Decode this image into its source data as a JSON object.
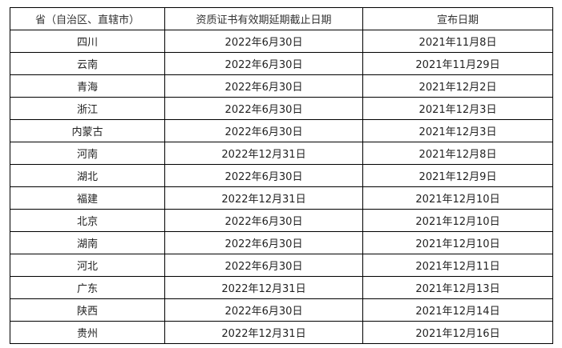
{
  "headers": [
    "省（自治区、直辖市）",
    "资质证书有效期延期截止日期",
    "宣布日期"
  ],
  "rows": [
    [
      "四川",
      "2022年6月30日",
      "2021年11月8日"
    ],
    [
      "云南",
      "2022年6月30日",
      "2021年11月29日"
    ],
    [
      "青海",
      "2022年6月30日",
      "2021年12月2日"
    ],
    [
      "浙江",
      "2022年6月30日",
      "2021年12月3日"
    ],
    [
      "内蒙古",
      "2022年6月30日",
      "2021年12月3日"
    ],
    [
      "河南",
      "2022年12月31日",
      "2021年12月8日"
    ],
    [
      "湖北",
      "2022年6月30日",
      "2021年12月9日"
    ],
    [
      "福建",
      "2022年12月31日",
      "2021年12月10日"
    ],
    [
      "北京",
      "2022年6月30日",
      "2021年12月10日"
    ],
    [
      "湖南",
      "2022年6月30日",
      "2021年12月10日"
    ],
    [
      "河北",
      "2022年6月30日",
      "2021年12月11日"
    ],
    [
      "广东",
      "2022年12月31日",
      "2021年12月13日"
    ],
    [
      "陕西",
      "2022年6月30日",
      "2021年12月14日"
    ],
    [
      "贵州",
      "2022年12月31日",
      "2021年12月16日"
    ]
  ]
}
